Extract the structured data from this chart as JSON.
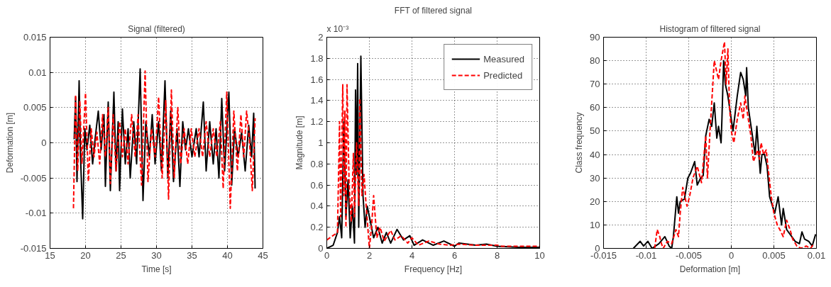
{
  "chart_data": [
    {
      "type": "line",
      "title": "Signal (filtered)",
      "xlabel": "Time [s]",
      "ylabel": "Deformation [m]",
      "xlim": [
        15,
        45
      ],
      "ylim": [
        -0.015,
        0.015
      ],
      "xticks": [
        15,
        20,
        25,
        30,
        35,
        40,
        45
      ],
      "yticks": [
        -0.015,
        -0.01,
        -0.005,
        0,
        0.005,
        0.01,
        0.015
      ],
      "grid": true,
      "legend": false,
      "series": [
        {
          "color": "#000000",
          "line_style": "solid",
          "x": [
            18.4,
            18.6,
            18.8,
            19.1,
            19.3,
            19.6,
            19.9,
            20.2,
            20.6,
            21,
            21.4,
            21.8,
            22.2,
            22.6,
            22.8,
            23.2,
            23.5,
            24,
            24.3,
            24.6,
            24.8,
            25.2,
            25.6,
            26,
            26.3,
            26.8,
            27.2,
            27.7,
            28.1,
            28.5,
            29,
            29.4,
            29.8,
            30.3,
            30.7,
            31.2,
            31.6,
            32,
            32.4,
            32.9,
            33.3,
            33.7,
            34.1,
            34.5,
            35,
            35.6,
            36,
            36.6,
            37,
            37.5,
            38,
            38.4,
            38.8,
            39.2,
            39.6,
            40.2,
            40.6,
            41,
            41.5,
            42,
            42.5,
            43,
            43.4,
            43.7,
            43.9
          ],
          "values": [
            0.0005,
            0.0065,
            -0.0055,
            0.0088,
            -0.002,
            -0.0108,
            0.002,
            -0.001,
            0.0025,
            -0.003,
            0.001,
            0.0045,
            -0.001,
            0.004,
            -0.0062,
            0.0058,
            -0.0068,
            0.0072,
            -0.004,
            0.003,
            -0.0068,
            0.0048,
            -0.003,
            0.002,
            -0.005,
            0.003,
            -0.003,
            0.0105,
            -0.0082,
            0.003,
            -0.002,
            0.004,
            -0.003,
            0.003,
            -0.004,
            0.0088,
            -0.005,
            0.0045,
            -0.0055,
            0.002,
            -0.0062,
            0.003,
            -0.001,
            0.002,
            -0.002,
            0.002,
            -0.002,
            0.0058,
            -0.004,
            0.003,
            -0.003,
            0.002,
            -0.005,
            0.0063,
            -0.004,
            0.0072,
            -0.006,
            0.002,
            -0.002,
            0.0015,
            -0.004,
            0.0025,
            -0.002,
            0.0042,
            -0.0065
          ]
        },
        {
          "color": "#ff0000",
          "line_style": "dashed",
          "x": [
            18.3,
            18.6,
            18.9,
            19.2,
            19.5,
            20,
            20.4,
            20.8,
            21.2,
            21.6,
            22,
            22.4,
            22.8,
            23.2,
            23.5,
            23.9,
            24.3,
            24.8,
            25.2,
            25.6,
            26,
            26.5,
            27,
            27.4,
            27.9,
            28.4,
            28.8,
            29.3,
            29.8,
            30.3,
            30.8,
            31.3,
            31.7,
            32.1,
            32.5,
            33,
            33.4,
            33.9,
            34.4,
            34.9,
            35.4,
            36,
            36.5,
            37,
            37.5,
            38,
            38.5,
            39,
            39.4,
            39.9,
            40.4,
            40.9,
            41.4,
            41.9,
            42.3,
            42.7,
            43.1,
            43.5,
            43.9
          ],
          "values": [
            -0.0093,
            0.0068,
            -0.004,
            0.006,
            -0.003,
            0.0071,
            -0.0055,
            0.002,
            -0.002,
            0.0015,
            -0.003,
            0.004,
            -0.002,
            0.005,
            -0.0058,
            0.004,
            -0.004,
            0.003,
            -0.002,
            0.002,
            -0.003,
            0.004,
            -0.002,
            0.004,
            -0.006,
            0.0102,
            -0.0055,
            0.002,
            -0.002,
            0.0065,
            -0.005,
            0.006,
            -0.008,
            0.0075,
            -0.005,
            0.005,
            -0.003,
            0.002,
            -0.003,
            0.002,
            -0.002,
            0.002,
            -0.002,
            0.003,
            -0.002,
            0.002,
            -0.002,
            0.003,
            -0.0065,
            0.0072,
            -0.0093,
            0.0045,
            -0.004,
            0.004,
            -0.002,
            0.0045,
            0.0005,
            -0.0068,
            0.0035
          ]
        }
      ]
    },
    {
      "type": "line",
      "title": "FFT of filtered signal",
      "xlabel": "Frequency [Hz]",
      "ylabel": "Magnitude [m]",
      "annotations": [
        "x 10⁻³"
      ],
      "xlim": [
        0,
        10
      ],
      "ylim": [
        0,
        2
      ],
      "xticks": [
        0,
        2,
        4,
        6,
        8,
        10
      ],
      "yticks": [
        0,
        0.2,
        0.4,
        0.6,
        0.8,
        1,
        1.2,
        1.4,
        1.6,
        1.8,
        2
      ],
      "grid": true,
      "legend": "top right",
      "series": [
        {
          "name": "Measured",
          "color": "#000000",
          "line_style": "solid",
          "x": [
            0,
            0.3,
            0.5,
            0.6,
            0.7,
            0.8,
            0.9,
            1.0,
            1.1,
            1.2,
            1.3,
            1.35,
            1.4,
            1.45,
            1.5,
            1.6,
            1.7,
            1.8,
            1.9,
            2.0,
            2.2,
            2.4,
            2.6,
            2.8,
            3.0,
            3.3,
            3.6,
            3.9,
            4.1,
            4.5,
            5,
            5.5,
            6,
            6.2,
            7,
            7.5,
            8,
            8.5,
            9,
            10
          ],
          "values": [
            0,
            0.03,
            0.15,
            0.3,
            0.1,
            1.2,
            0.3,
            0.65,
            0.1,
            0.4,
            0.05,
            1.5,
            0.7,
            1.75,
            0.2,
            1.82,
            0.5,
            0.2,
            0.4,
            0.3,
            0.1,
            0.2,
            0.05,
            0.15,
            0.05,
            0.18,
            0.08,
            0.12,
            0.03,
            0.08,
            0.03,
            0.07,
            0.02,
            0.05,
            0.03,
            0.04,
            0.02,
            0.015,
            0.01,
            0.01
          ]
        },
        {
          "name": "Predicted",
          "color": "#ff0000",
          "line_style": "dashed",
          "x": [
            0,
            0.5,
            0.6,
            0.65,
            0.75,
            0.8,
            0.85,
            0.9,
            0.95,
            1.05,
            1.15,
            1.25,
            1.3,
            1.4,
            1.5,
            1.55,
            1.65,
            1.75,
            1.85,
            2.0,
            2.1,
            2.2,
            2.35,
            2.5,
            2.7,
            3.0,
            3.2,
            3.5,
            3.8,
            4.0,
            4.3,
            4.8,
            5.3,
            5.8,
            6.2,
            7,
            7.6,
            8,
            8.2,
            10
          ],
          "values": [
            0.08,
            0.15,
            1.2,
            0.3,
            1.55,
            0.5,
            1.3,
            0.2,
            1.55,
            0.6,
            0.25,
            0.9,
            0.3,
            1.0,
            0.4,
            1.42,
            0.5,
            0.7,
            0.4,
            0.0,
            0.2,
            0.5,
            0.1,
            0.2,
            0.07,
            0.17,
            0.08,
            0.12,
            0.05,
            0.1,
            0.03,
            0.07,
            0.04,
            0.03,
            0.04,
            0.03,
            0.03,
            0.03,
            0.02,
            0.02
          ]
        }
      ]
    },
    {
      "type": "line",
      "title": "Histogram of filtered signal",
      "xlabel": "Deformation [m]",
      "ylabel": "Class frequency",
      "xlim": [
        -0.015,
        0.01
      ],
      "ylim": [
        0,
        90
      ],
      "xticks": [
        -0.015,
        -0.01,
        -0.005,
        0,
        0.005,
        0.01
      ],
      "yticks": [
        0,
        10,
        20,
        30,
        40,
        50,
        60,
        70,
        80,
        90
      ],
      "grid": true,
      "legend": false,
      "series": [
        {
          "color": "#000000",
          "line_style": "solid",
          "x": [
            -0.0115,
            -0.0107,
            -0.0103,
            -0.0098,
            -0.0093,
            -0.0085,
            -0.0078,
            -0.0073,
            -0.007,
            -0.0068,
            -0.0064,
            -0.0062,
            -0.006,
            -0.0055,
            -0.0051,
            -0.0048,
            -0.0043,
            -0.004,
            -0.0036,
            -0.0033,
            -0.003,
            -0.0026,
            -0.0023,
            -0.002,
            -0.0017,
            -0.0015,
            -0.0012,
            -0.0011,
            -0.0009,
            -0.0007,
            -0.0004,
            -0.0002,
            0.0002,
            0.0007,
            0.0011,
            0.0014,
            0.0017,
            0.0018,
            0.002,
            0.0024,
            0.0028,
            0.003,
            0.0033,
            0.0034,
            0.0036,
            0.0039,
            0.0042,
            0.0045,
            0.0051,
            0.0055,
            0.0059,
            0.0061,
            0.0065,
            0.0071,
            0.0075,
            0.008,
            0.0083,
            0.0086,
            0.0091,
            0.0095,
            0.0099
          ],
          "values": [
            0,
            3,
            1,
            3,
            0,
            2,
            5,
            1,
            0,
            5,
            22,
            15,
            20,
            21,
            30,
            32,
            37,
            27,
            30,
            31,
            48,
            55,
            52,
            62,
            47,
            52,
            45,
            55,
            80,
            70,
            65,
            60,
            50,
            65,
            75,
            72,
            65,
            77,
            60,
            50,
            40,
            52,
            37,
            32,
            40,
            40,
            35,
            22,
            15,
            22,
            10,
            17,
            8,
            5,
            3,
            2,
            7,
            4,
            3,
            1,
            6
          ]
        },
        {
          "color": "#ff0000",
          "line_style": "dashed",
          "x": [
            -0.009,
            -0.0087,
            -0.0084,
            -0.0082,
            -0.008,
            -0.0075,
            -0.007,
            -0.0065,
            -0.0062,
            -0.006,
            -0.0057,
            -0.0052,
            -0.0049,
            -0.0045,
            -0.004,
            -0.0035,
            -0.003,
            -0.0028,
            -0.0025,
            -0.002,
            -0.0015,
            -0.0012,
            -0.0008,
            -0.0006,
            -0.0004,
            -0.0002,
            0,
            0.0003,
            0.0007,
            0.0011,
            0.0014,
            0.0016,
            0.002,
            0.0023,
            0.0026,
            0.0031,
            0.0033,
            0.0035,
            0.0038,
            0.0041,
            0.0043,
            0.0047,
            0.005,
            0.0054,
            0.0057,
            0.0061,
            0.0065,
            0.0069,
            0.0072,
            0.0077,
            0.0082,
            0.0088,
            0.0093,
            0.0097
          ],
          "values": [
            0,
            8,
            5,
            2,
            0,
            3,
            2,
            8,
            5,
            15,
            26,
            18,
            22,
            30,
            35,
            28,
            48,
            30,
            50,
            80,
            72,
            80,
            88,
            70,
            85,
            60,
            50,
            45,
            55,
            62,
            55,
            65,
            55,
            48,
            37,
            42,
            38,
            45,
            40,
            42,
            35,
            22,
            15,
            10,
            8,
            5,
            12,
            8,
            4,
            1,
            0,
            1,
            0,
            2
          ]
        }
      ]
    }
  ]
}
